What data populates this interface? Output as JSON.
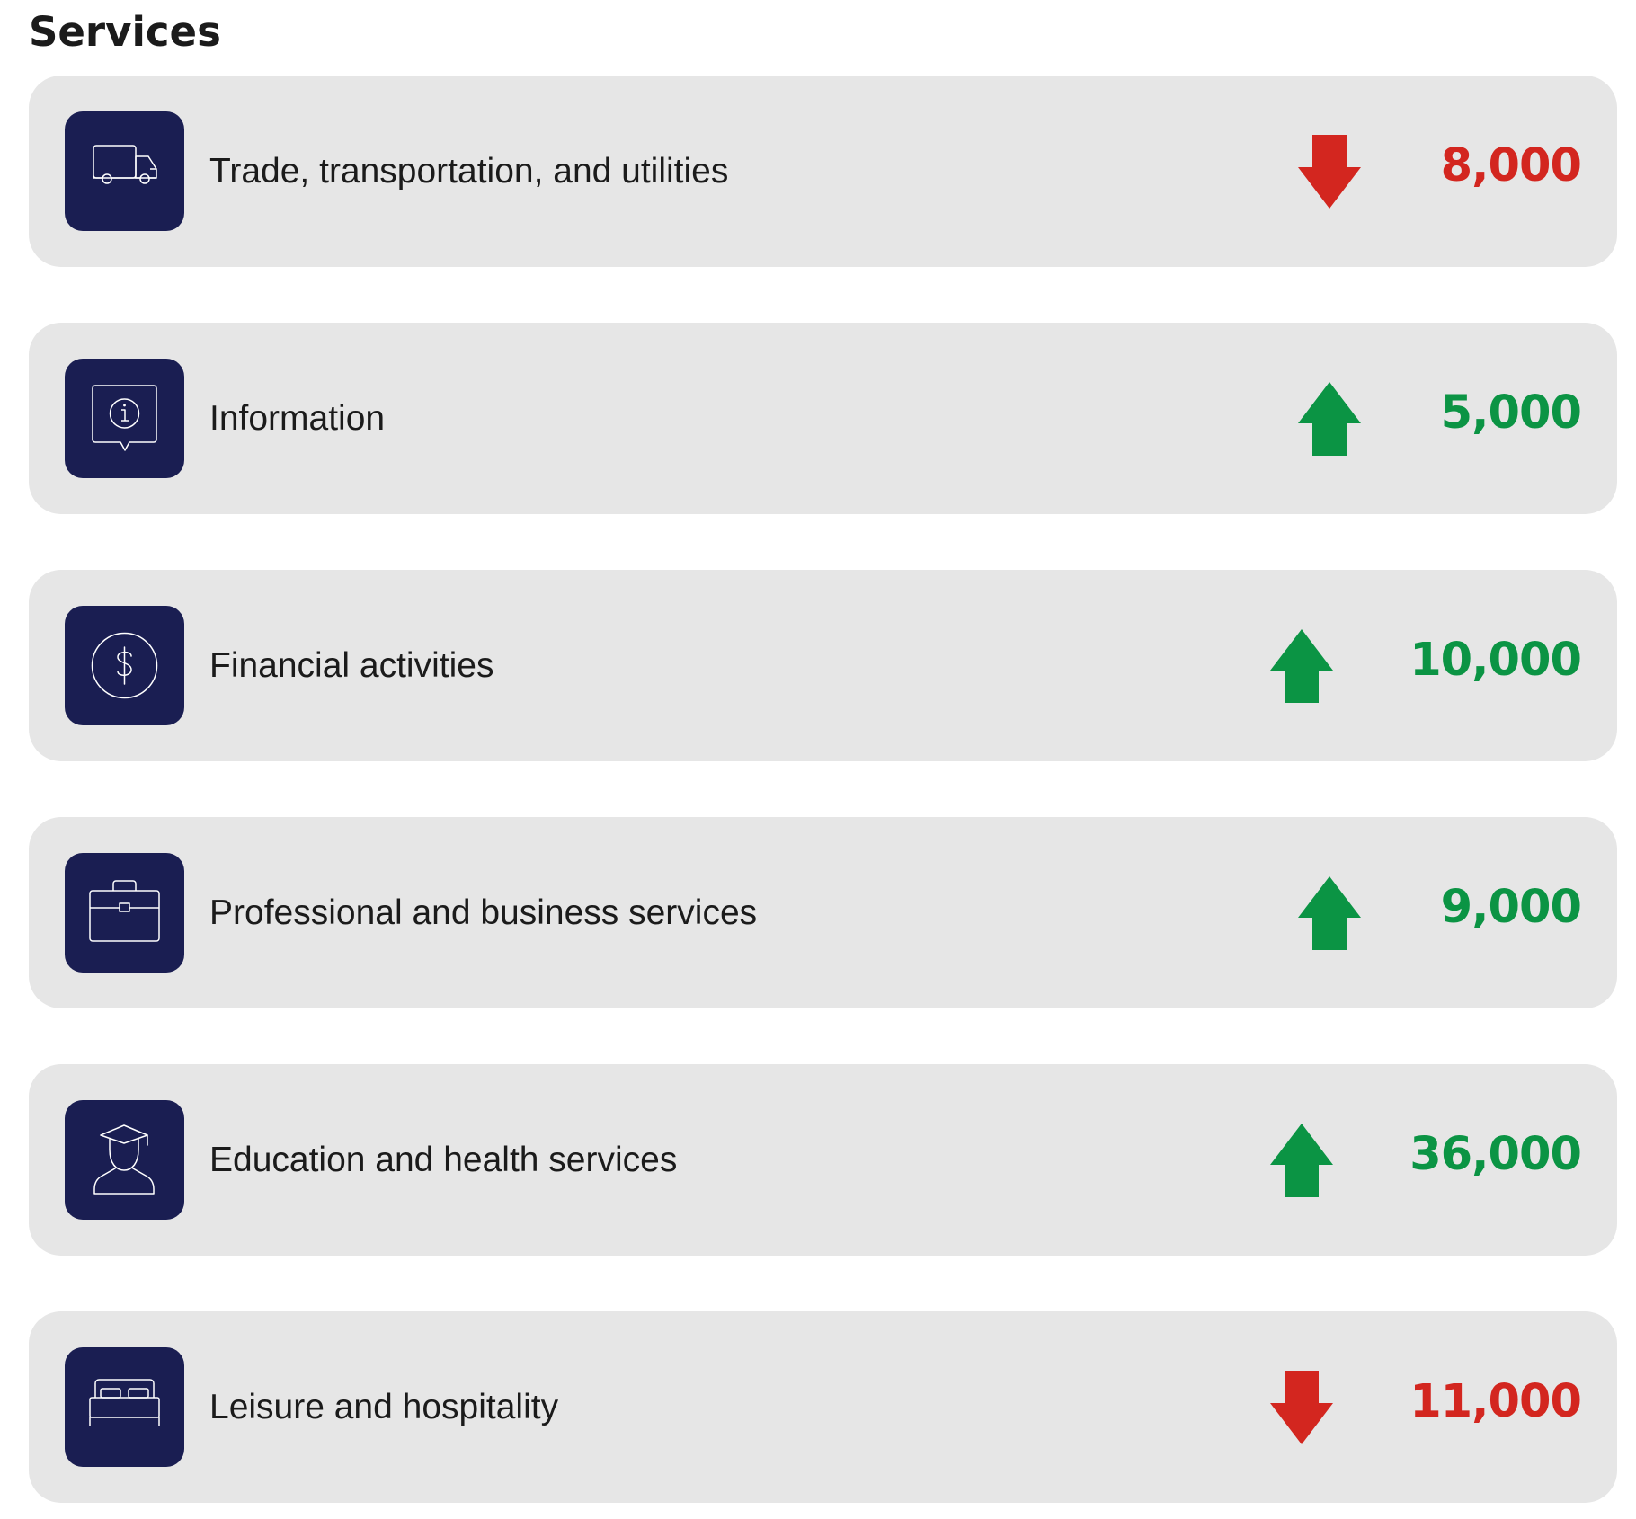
{
  "page": {
    "title": "Services"
  },
  "colors": {
    "card_bg": "#e6e6e6",
    "icon_bg": "#1a1e52",
    "up": "#0b9444",
    "down": "#d3261f",
    "text": "#1b1b1b"
  },
  "rows": [
    {
      "label": "Trade, transportation, and utilities",
      "value": "8,000",
      "trend": "down",
      "icon": "truck-icon"
    },
    {
      "label": "Information",
      "value": "5,000",
      "trend": "up",
      "icon": "info-bubble-icon"
    },
    {
      "label": "Financial activities",
      "value": "10,000",
      "trend": "up",
      "icon": "dollar-coin-icon"
    },
    {
      "label": "Professional and business services",
      "value": "9,000",
      "trend": "up",
      "icon": "briefcase-icon"
    },
    {
      "label": "Education and health services",
      "value": "36,000",
      "trend": "up",
      "icon": "graduate-icon"
    },
    {
      "label": "Leisure and hospitality",
      "value": "11,000",
      "trend": "down",
      "icon": "bed-icon"
    }
  ]
}
